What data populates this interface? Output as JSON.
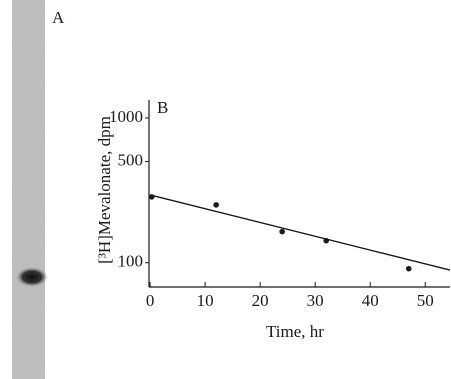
{
  "panel_a": {
    "label": "A"
  },
  "chart_data": {
    "type": "scatter",
    "annotations": [
      "B"
    ],
    "xlabel": "Time, hr",
    "ylabel": "[³H]Mevalonate, dpm",
    "xlim": [
      -0.2,
      54.5
    ],
    "xticks": [
      0,
      10,
      20,
      30,
      40,
      50
    ],
    "ylim": [
      68,
      1330
    ],
    "yticks": [
      100,
      500,
      1000
    ],
    "yscale": "log",
    "series": [
      {
        "x": [
          0.3,
          12,
          24,
          32,
          47
        ],
        "values": [
          285,
          251,
          164,
          142,
          91
        ],
        "color": "#1a1a1a",
        "mode": "markers"
      },
      {
        "x": [
          0,
          54.5
        ],
        "values": [
          294,
          89
        ],
        "color": "#1a1a1a",
        "mode": "line"
      }
    ]
  }
}
